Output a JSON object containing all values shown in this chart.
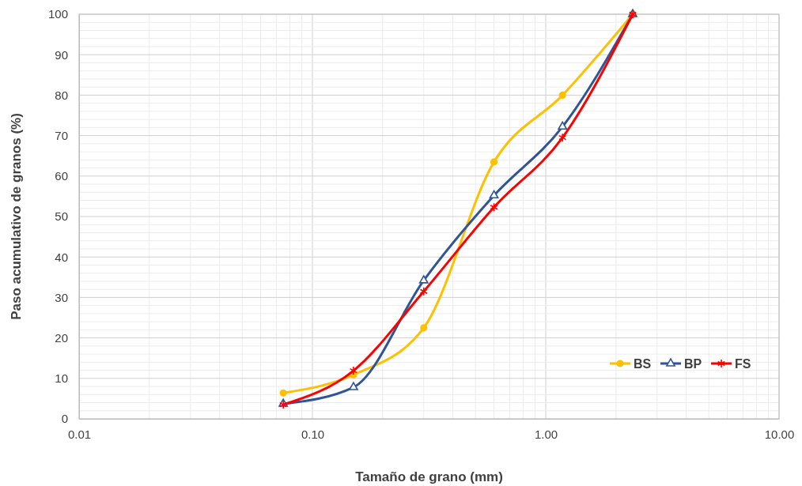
{
  "chart_data": {
    "type": "line",
    "xlabel": "Tamaño de grano (mm)",
    "ylabel": "Paso acumulativo de granos (%)",
    "log": "x",
    "xlim": [
      0.01,
      10
    ],
    "xticks": [
      {
        "value": 0.01,
        "label": "0.01"
      },
      {
        "value": 0.1,
        "label": "0.10"
      },
      {
        "value": 1,
        "label": "1.00"
      },
      {
        "value": 10,
        "label": "10.00"
      }
    ],
    "ylim": [
      0,
      100
    ],
    "yticks": [
      0,
      10,
      20,
      30,
      40,
      50,
      60,
      70,
      80,
      90,
      100
    ],
    "grid": true,
    "legend": "bottom right",
    "x": [
      0.075,
      0.15,
      0.3,
      0.6,
      1.18,
      2.36
    ],
    "series": [
      {
        "name": "BS",
        "color": "#ffc000",
        "marker": "circle",
        "values": [
          6.4,
          10.9,
          22.5,
          63.5,
          80,
          100
        ]
      },
      {
        "name": "BP",
        "color": "#2f5597",
        "marker": "triangle",
        "values": [
          3.7,
          7.8,
          34.2,
          55.2,
          72.2,
          100
        ]
      },
      {
        "name": "FS",
        "color": "#ff0000",
        "marker": "cross",
        "values": [
          3.5,
          11.9,
          31.5,
          52.3,
          69.5,
          100
        ]
      }
    ]
  }
}
